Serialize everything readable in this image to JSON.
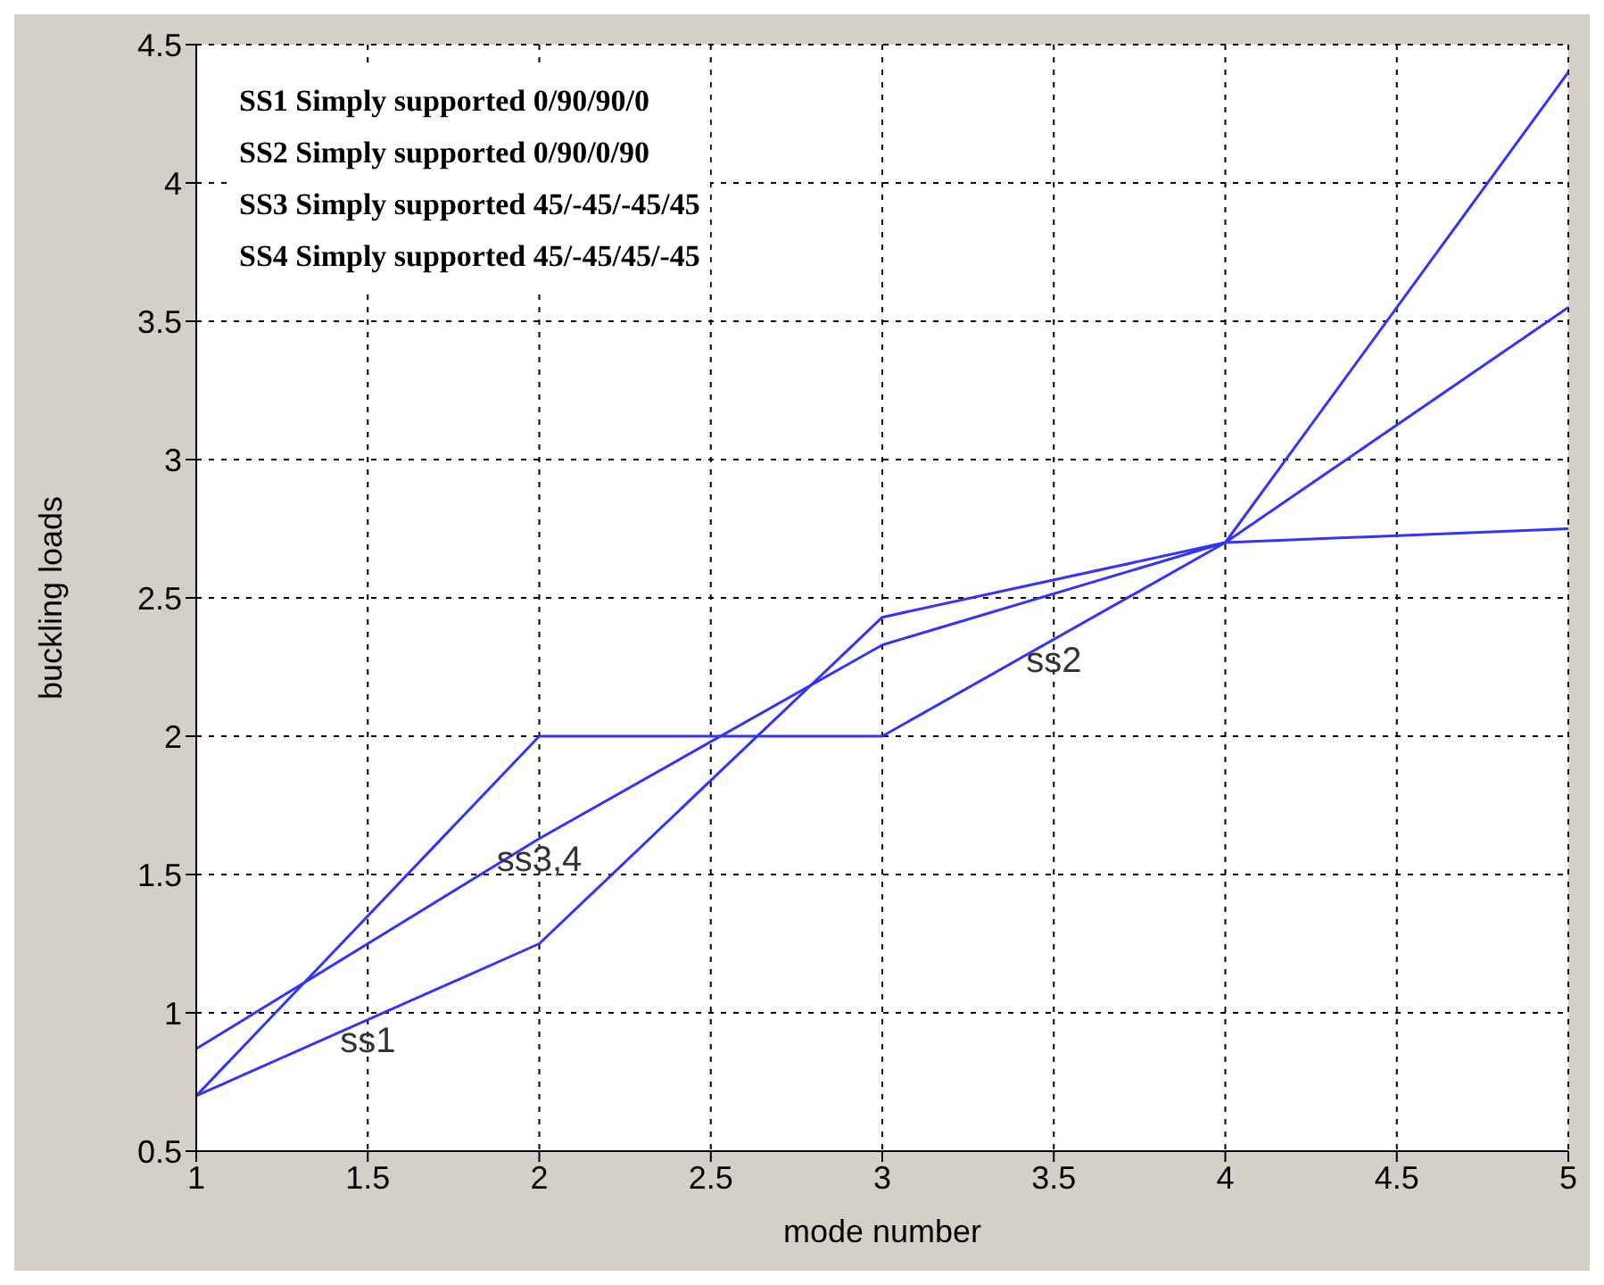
{
  "chart_data": {
    "type": "line",
    "xlabel": "mode number",
    "ylabel": "buckling loads",
    "x": [
      1,
      2,
      3,
      4,
      5
    ],
    "series": [
      {
        "color": "#3333ff",
        "values": [
          0.7,
          1.25,
          2.43,
          2.7,
          2.75
        ]
      },
      {
        "color": "#3333ff",
        "values": [
          0.7,
          2.0,
          2.0,
          2.7,
          4.4
        ]
      },
      {
        "color": "#3333ff",
        "values": [
          0.87,
          1.63,
          2.33,
          2.7,
          3.55
        ]
      }
    ],
    "xlim": [
      1,
      5
    ],
    "xticks": [
      1,
      1.5,
      2,
      2.5,
      3,
      3.5,
      4,
      4.5,
      5
    ],
    "ylim": [
      0.5,
      4.5
    ],
    "yticks": [
      0.5,
      1,
      1.5,
      2,
      2.5,
      3,
      3.5,
      4,
      4.5
    ],
    "grid": true,
    "marker": "none",
    "line_style": "solid",
    "annotations": [
      "SS1 Simply supported 0/90/90/0",
      "SS2 Simply supported 0/90/0/90",
      "SS3 Simply supported 45/-45/-45/45",
      "SS4 Simply supported 45/-45/45/-45",
      {
        "text": "ss1",
        "x": 1.5,
        "y": 0.975
      },
      {
        "text": "ss3,4",
        "x": 2,
        "y": 1.63
      },
      {
        "text": "ss2",
        "x": 3.5,
        "y": 2.35
      }
    ]
  }
}
